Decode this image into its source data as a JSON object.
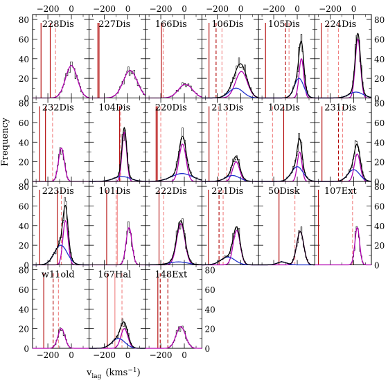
{
  "figure": {
    "ylabel": "Frequency",
    "xlabel_main": "v",
    "xlabel_sub": "lag",
    "xlabel_unit": "(kms",
    "xlabel_exp": "−1",
    "xlabel_close": ")"
  },
  "chart_data": {
    "type": "histogram-grid",
    "x_axis": {
      "range": [
        -330,
        150
      ],
      "ticks": [
        -200,
        0
      ],
      "tick_labels": [
        "−200",
        "0"
      ],
      "label": "v_lag (kms^-1)"
    },
    "y_axis": {
      "range": [
        0,
        85
      ],
      "ticks": [
        0,
        20,
        40,
        60,
        80
      ],
      "tick_labels": [
        "0",
        "20",
        "40",
        "60",
        "80"
      ],
      "label": "Frequency"
    },
    "series_colors": {
      "histogram": "#000000",
      "total_fit": "#000000",
      "gauss_primary": "#b000b0",
      "gauss_secondary": "#2233cc",
      "vline_dark": "#b00000",
      "vline_light": "#f08080"
    },
    "panels": [
      {
        "name": "228Dis",
        "vlines": [
          {
            "x": -258,
            "c": "dark"
          },
          {
            "x": -180,
            "c": "dark"
          },
          {
            "x": -135,
            "c": "light",
            "dash": true
          }
        ],
        "gauss": [
          {
            "mu": 0,
            "amp": 33,
            "sig": 50,
            "c": "p"
          }
        ],
        "total": [
          {
            "mu": 0,
            "amp": 33,
            "sig": 50
          }
        ]
      },
      {
        "name": "227Dis",
        "vlines": [
          {
            "x": -255,
            "c": "dark"
          },
          {
            "x": -245,
            "c": "dark"
          }
        ],
        "gauss": [
          {
            "mu": 20,
            "amp": 28,
            "sig": 60,
            "c": "p"
          }
        ],
        "total": [
          {
            "mu": 20,
            "amp": 28,
            "sig": 60
          }
        ]
      },
      {
        "name": "166Dis",
        "vlines": [
          {
            "x": -195,
            "c": "dark"
          },
          {
            "x": -180,
            "c": "light",
            "dash": true
          }
        ],
        "gauss": [
          {
            "mu": 10,
            "amp": 14,
            "sig": 60,
            "c": "p"
          }
        ],
        "total": [
          {
            "mu": 10,
            "amp": 14,
            "sig": 60
          }
        ]
      },
      {
        "name": "106Dis",
        "vlines": [
          {
            "x": -270,
            "c": "dark"
          },
          {
            "x": -210,
            "c": "dark",
            "dash": true
          },
          {
            "x": -160,
            "c": "light",
            "dash": true
          }
        ],
        "gauss": [
          {
            "mu": 5,
            "amp": 27,
            "sig": 50,
            "c": "p"
          },
          {
            "mu": -40,
            "amp": 10,
            "sig": 60,
            "c": "s"
          }
        ],
        "total": [
          {
            "mu": 5,
            "amp": 27,
            "sig": 50
          },
          {
            "mu": -40,
            "amp": 10,
            "sig": 60
          }
        ]
      },
      {
        "name": "105Dis",
        "vlines": [
          {
            "x": -270,
            "c": "dark"
          },
          {
            "x": -100,
            "c": "dark",
            "dash": true
          },
          {
            "x": -70,
            "c": "light",
            "dash": true
          }
        ],
        "gauss": [
          {
            "mu": 35,
            "amp": 40,
            "sig": 20,
            "c": "p"
          },
          {
            "mu": 15,
            "amp": 20,
            "sig": 40,
            "c": "s"
          }
        ],
        "total": [
          {
            "mu": 35,
            "amp": 40,
            "sig": 20
          },
          {
            "mu": 15,
            "amp": 20,
            "sig": 40
          }
        ]
      },
      {
        "name": "224Dis",
        "vlines": [
          {
            "x": -275,
            "c": "dark"
          },
          {
            "x": -220,
            "c": "light",
            "dash": true
          },
          {
            "x": -130,
            "c": "light",
            "dash": true
          }
        ],
        "gauss": [
          {
            "mu": 35,
            "amp": 60,
            "sig": 22,
            "c": "p"
          },
          {
            "mu": 20,
            "amp": 6,
            "sig": 60,
            "c": "s"
          }
        ],
        "total": [
          {
            "mu": 35,
            "amp": 60,
            "sig": 22
          },
          {
            "mu": 20,
            "amp": 6,
            "sig": 60
          }
        ]
      },
      {
        "name": "232Dis",
        "vlines": [
          {
            "x": -270,
            "c": "dark"
          },
          {
            "x": -220,
            "c": "dark"
          },
          {
            "x": -160,
            "c": "light",
            "dash": true
          }
        ],
        "gauss": [
          {
            "mu": -85,
            "amp": 34,
            "sig": 25,
            "c": "p"
          }
        ],
        "total": [
          {
            "mu": -85,
            "amp": 34,
            "sig": 25
          }
        ]
      },
      {
        "name": "104Dis",
        "vlines": [
          {
            "x": -70,
            "c": "dark"
          },
          {
            "x": -60,
            "c": "light",
            "dash": true
          }
        ],
        "gauss": [
          {
            "mu": -30,
            "amp": 50,
            "sig": 20,
            "c": "p"
          },
          {
            "mu": -50,
            "amp": 5,
            "sig": 70,
            "c": "s"
          }
        ],
        "total": [
          {
            "mu": -30,
            "amp": 50,
            "sig": 20
          },
          {
            "mu": -50,
            "amp": 5,
            "sig": 70
          }
        ]
      },
      {
        "name": "220Dis",
        "vlines": [
          {
            "x": -240,
            "c": "dark"
          },
          {
            "x": -230,
            "c": "dark"
          },
          {
            "x": -200,
            "c": "light",
            "dash": true
          }
        ],
        "gauss": [
          {
            "mu": -15,
            "amp": 38,
            "sig": 30,
            "c": "p"
          },
          {
            "mu": -20,
            "amp": 8,
            "sig": 90,
            "c": "s"
          }
        ],
        "total": [
          {
            "mu": -15,
            "amp": 38,
            "sig": 30
          },
          {
            "mu": -20,
            "amp": 8,
            "sig": 90
          }
        ]
      },
      {
        "name": "213Dis",
        "vlines": [
          {
            "x": -270,
            "c": "dark"
          },
          {
            "x": -190,
            "c": "light",
            "dash": true
          },
          {
            "x": -120,
            "c": "light",
            "dash": true
          }
        ],
        "gauss": [
          {
            "mu": -40,
            "amp": 20,
            "sig": 30,
            "c": "p"
          },
          {
            "mu": -70,
            "amp": 6,
            "sig": 60,
            "c": "s"
          }
        ],
        "total": [
          {
            "mu": -40,
            "amp": 20,
            "sig": 30
          },
          {
            "mu": -70,
            "amp": 6,
            "sig": 60
          }
        ]
      },
      {
        "name": "102Dis",
        "vlines": [
          {
            "x": -210,
            "c": "light",
            "dash": true
          },
          {
            "x": -115,
            "c": "dark"
          }
        ],
        "gauss": [
          {
            "mu": 20,
            "amp": 30,
            "sig": 20,
            "c": "p"
          },
          {
            "mu": 0,
            "amp": 15,
            "sig": 50,
            "c": "s"
          }
        ],
        "total": [
          {
            "mu": 20,
            "amp": 30,
            "sig": 20
          },
          {
            "mu": 0,
            "amp": 15,
            "sig": 50
          }
        ]
      },
      {
        "name": "231Dis",
        "vlines": [
          {
            "x": -270,
            "c": "dark"
          },
          {
            "x": -130,
            "c": "dark",
            "dash": true
          },
          {
            "x": -95,
            "c": "light",
            "dash": true
          }
        ],
        "gauss": [
          {
            "mu": 30,
            "amp": 28,
            "sig": 25,
            "c": "p"
          },
          {
            "mu": 0,
            "amp": 12,
            "sig": 50,
            "c": "s"
          }
        ],
        "total": [
          {
            "mu": 30,
            "amp": 28,
            "sig": 25
          },
          {
            "mu": 0,
            "amp": 12,
            "sig": 50
          }
        ]
      },
      {
        "name": "223Dis",
        "vlines": [
          {
            "x": -270,
            "c": "dark"
          },
          {
            "x": -120,
            "c": "dark"
          },
          {
            "x": -85,
            "c": "light",
            "dash": true
          }
        ],
        "gauss": [
          {
            "mu": -50,
            "amp": 45,
            "sig": 22,
            "c": "p"
          },
          {
            "mu": -90,
            "amp": 20,
            "sig": 55,
            "c": "s"
          }
        ],
        "total": [
          {
            "mu": -50,
            "amp": 45,
            "sig": 22
          },
          {
            "mu": -90,
            "amp": 20,
            "sig": 55
          }
        ]
      },
      {
        "name": "101Dis",
        "vlines": [
          {
            "x": -180,
            "c": "dark"
          },
          {
            "x": -100,
            "c": "light",
            "dash": true
          },
          {
            "x": -90,
            "c": "light"
          }
        ],
        "gauss": [
          {
            "mu": 10,
            "amp": 38,
            "sig": 25,
            "c": "p"
          }
        ],
        "total": [
          {
            "mu": 10,
            "amp": 38,
            "sig": 25
          }
        ]
      },
      {
        "name": "222Dis",
        "vlines": [
          {
            "x": -215,
            "c": "dark"
          },
          {
            "x": -175,
            "c": "light",
            "dash": true
          }
        ],
        "gauss": [
          {
            "mu": -30,
            "amp": 42,
            "sig": 35,
            "c": "p"
          },
          {
            "mu": -50,
            "amp": 3,
            "sig": 80,
            "c": "s"
          }
        ],
        "total": [
          {
            "mu": -30,
            "amp": 42,
            "sig": 35
          },
          {
            "mu": -50,
            "amp": 3,
            "sig": 80
          }
        ]
      },
      {
        "name": "221Dis",
        "vlines": [
          {
            "x": -275,
            "c": "dark"
          },
          {
            "x": -185,
            "c": "dark",
            "dash": true
          },
          {
            "x": -150,
            "c": "light",
            "dash": true
          }
        ],
        "gauss": [
          {
            "mu": -35,
            "amp": 35,
            "sig": 30,
            "c": "p"
          },
          {
            "mu": -110,
            "amp": 8,
            "sig": 60,
            "c": "s"
          }
        ],
        "total": [
          {
            "mu": -35,
            "amp": 35,
            "sig": 30
          },
          {
            "mu": -110,
            "amp": 8,
            "sig": 60
          }
        ]
      },
      {
        "name": "50Disk",
        "vlines": [
          {
            "x": -155,
            "c": "dark"
          },
          {
            "x": -20,
            "c": "light",
            "dash": true
          }
        ],
        "gauss": [
          {
            "mu": 25,
            "amp": 34,
            "sig": 30,
            "c": "p"
          },
          {
            "mu": -130,
            "amp": 3,
            "sig": 40,
            "c": "s"
          }
        ],
        "total": [
          {
            "mu": 25,
            "amp": 34,
            "sig": 30
          },
          {
            "mu": -130,
            "amp": 3,
            "sig": 40
          }
        ]
      },
      {
        "name": "107Ext",
        "vlines": [
          {
            "x": -300,
            "c": "dark"
          },
          {
            "x": -10,
            "c": "light",
            "dash": true
          }
        ],
        "gauss": [
          {
            "mu": 30,
            "amp": 38,
            "sig": 20,
            "c": "p"
          }
        ],
        "total": [
          {
            "mu": 30,
            "amp": 38,
            "sig": 20
          }
        ]
      },
      {
        "name": "w11old",
        "vlines": [
          {
            "x": -235,
            "c": "dark"
          },
          {
            "x": -155,
            "c": "dark",
            "dash": true
          },
          {
            "x": -110,
            "c": "light",
            "dash": true
          }
        ],
        "gauss": [
          {
            "mu": -85,
            "amp": 20,
            "sig": 30,
            "c": "p"
          }
        ],
        "total": [
          {
            "mu": -85,
            "amp": 20,
            "sig": 30
          }
        ]
      },
      {
        "name": "167Hal",
        "vlines": [
          {
            "x": -175,
            "c": "dark"
          },
          {
            "x": -110,
            "c": "light"
          },
          {
            "x": -50,
            "c": "light",
            "dash": true
          }
        ],
        "gauss": [
          {
            "mu": -30,
            "amp": 20,
            "sig": 30,
            "c": "p"
          },
          {
            "mu": -80,
            "amp": 10,
            "sig": 55,
            "c": "s"
          }
        ],
        "total": [
          {
            "mu": -30,
            "amp": 20,
            "sig": 30
          },
          {
            "mu": -80,
            "amp": 10,
            "sig": 55
          }
        ]
      },
      {
        "name": "148Ext",
        "vlines": [
          {
            "x": -225,
            "c": "dark"
          },
          {
            "x": -205,
            "c": "dark",
            "dash": true
          },
          {
            "x": -140,
            "c": "dark",
            "dash": true
          }
        ],
        "gauss": [
          {
            "mu": -30,
            "amp": 22,
            "sig": 40,
            "c": "p"
          }
        ],
        "total": [
          {
            "mu": -30,
            "amp": 22,
            "sig": 40
          }
        ]
      }
    ]
  }
}
